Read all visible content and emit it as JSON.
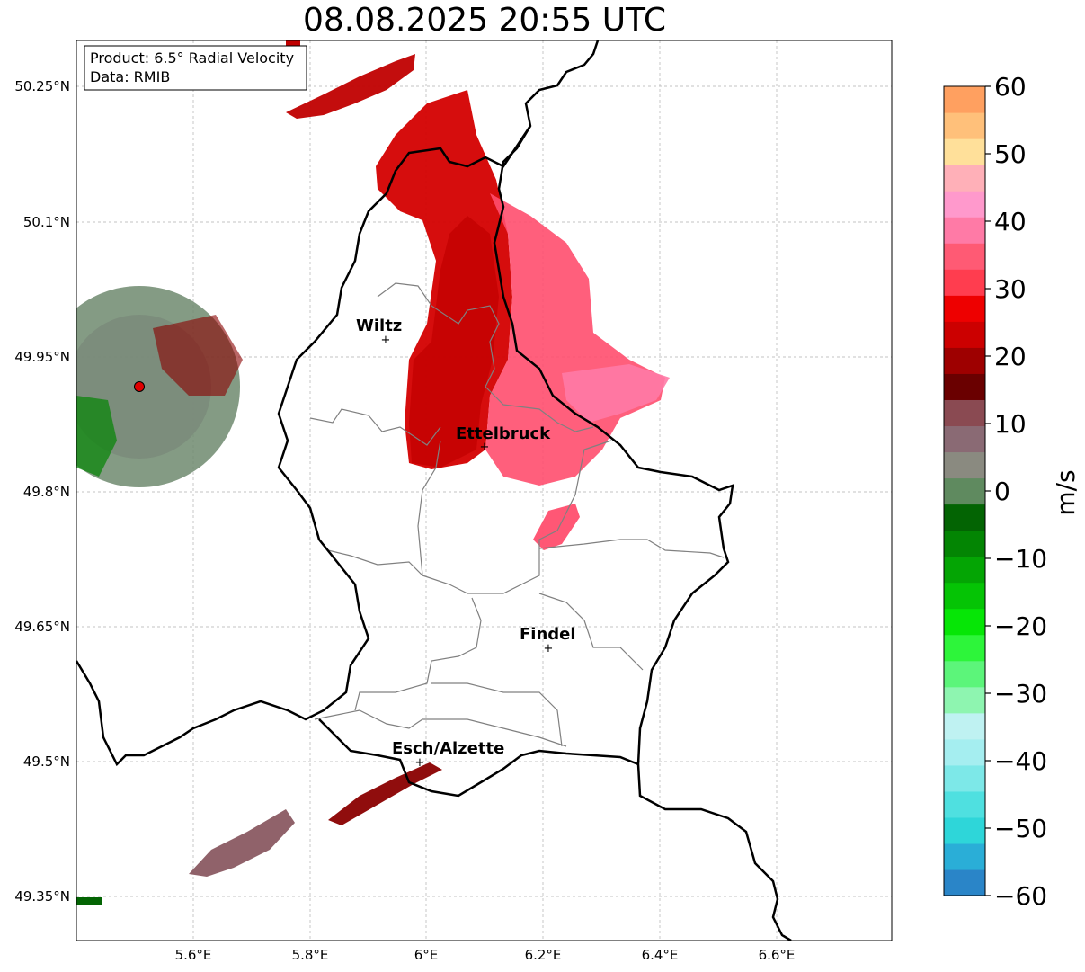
{
  "title": "08.08.2025 20:55 UTC",
  "info_box": {
    "product": "Product: 6.5° Radial Velocity",
    "data": "Data: RMIB"
  },
  "axes": {
    "lon_ticks": [
      "5.6°E",
      "5.8°E",
      "6°E",
      "6.2°E",
      "6.4°E",
      "6.6°E"
    ],
    "lat_ticks": [
      "50.25°N",
      "50.1°N",
      "49.95°N",
      "49.8°N",
      "49.65°N",
      "49.5°N",
      "49.35°N"
    ]
  },
  "cities": [
    {
      "name": "Wiltz"
    },
    {
      "name": "Ettelbruck"
    },
    {
      "name": "Findel"
    },
    {
      "name": "Esch/Alzette"
    }
  ],
  "colorbar": {
    "label": "m/s",
    "ticks": [
      "60",
      "50",
      "40",
      "30",
      "20",
      "10",
      "0",
      "−10",
      "−20",
      "−30",
      "−40",
      "−50",
      "−60"
    ],
    "colors": [
      "#2a85c8",
      "#2aaed7",
      "#2ed6d9",
      "#4fe0e0",
      "#7de8e8",
      "#a5eef0",
      "#bff2f2",
      "#8ef5b0",
      "#5cf57a",
      "#2df53a",
      "#06e606",
      "#05c405",
      "#04a504",
      "#038503",
      "#036403",
      "#5f8a5f",
      "#8a8a80",
      "#8a6a74",
      "#8a4a52",
      "#6a0000",
      "#9e0000",
      "#cc0000",
      "#ee0000",
      "#ff3d4f",
      "#ff5a74",
      "#ff7aa6",
      "#ff99cc",
      "#ffb0b8",
      "#ffe09a",
      "#ffc07a",
      "#ffa060"
    ]
  },
  "radar_site_color": "#e00000",
  "accent": {
    "border": "#000000",
    "admin": "#808080",
    "grid": "#b0b0b0"
  }
}
